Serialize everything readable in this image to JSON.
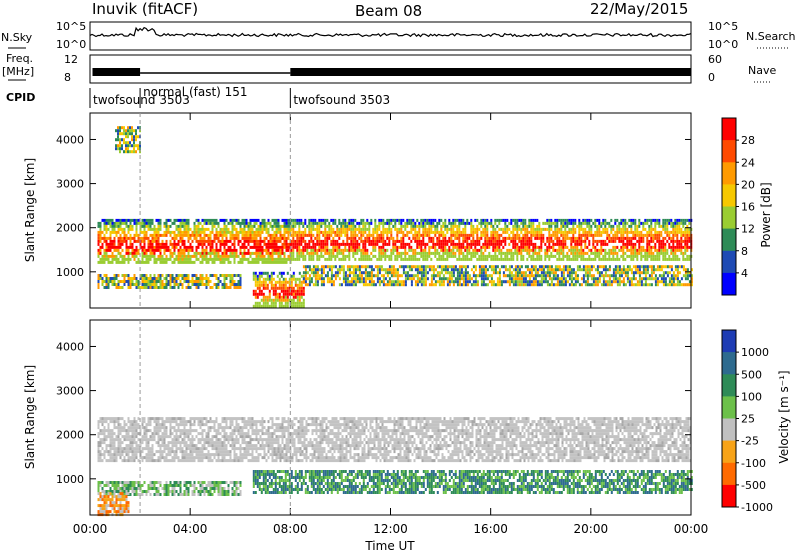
{
  "header": {
    "station": "Inuvik (fitACF)",
    "beam": "Beam 08",
    "date": "22/May/2015"
  },
  "chart_data": [
    {
      "type": "line",
      "name": "n-sky-n-search",
      "left_label": "N.Sky",
      "right_label": "N.Search",
      "left_ticks": [
        "10^5",
        "10^0"
      ],
      "right_ticks": [
        "10^5",
        "10^0"
      ],
      "log_scale": true
    },
    {
      "type": "line",
      "name": "freq-nave",
      "left_label_top": "Freq.",
      "left_label_unit": "[MHz]",
      "right_label": "Nave",
      "left_ticks": [
        "12",
        "8"
      ],
      "right_ticks": [
        "60",
        "0"
      ]
    },
    {
      "type": "table",
      "name": "cpid",
      "label": "CPID",
      "segments": [
        {
          "start_ut": 0.0,
          "end_ut": 2.0,
          "text": "twofsound 3503"
        },
        {
          "start_ut": 2.0,
          "end_ut": 8.0,
          "text": "normal (fast) 151"
        },
        {
          "start_ut": 8.0,
          "end_ut": 24.0,
          "text": "twofsound 3503"
        }
      ]
    },
    {
      "type": "heatmap",
      "name": "power",
      "ylabel": "Slant Range [km]",
      "ylim": [
        180,
        4600
      ],
      "yticks": [
        "1000",
        "2000",
        "3000",
        "4000"
      ],
      "colorbar_label": "Power [dB]",
      "colorbar_ticks": [
        "28",
        "24",
        "20",
        "16",
        "12",
        "8",
        "4"
      ],
      "colorbar_colors": [
        "#ff0000",
        "#ff4a00",
        "#ff9a00",
        "#f6c800",
        "#9acd32",
        "#2e8b57",
        "#1e4ab4",
        "#0000ff"
      ],
      "bands": [
        {
          "start_ut": 0.3,
          "end_ut": 8.0,
          "low_km": 1200,
          "high_km": 2200,
          "level": "high"
        },
        {
          "start_ut": 8.0,
          "end_ut": 24.0,
          "low_km": 1300,
          "high_km": 2200,
          "level": "high"
        },
        {
          "start_ut": 0.3,
          "end_ut": 6.0,
          "low_km": 650,
          "high_km": 950,
          "level": "mid"
        },
        {
          "start_ut": 6.5,
          "end_ut": 8.5,
          "low_km": 250,
          "high_km": 1000,
          "level": "high"
        },
        {
          "start_ut": 8.5,
          "end_ut": 24.0,
          "low_km": 700,
          "high_km": 1150,
          "level": "mid"
        },
        {
          "start_ut": 1.0,
          "end_ut": 2.0,
          "low_km": 3700,
          "high_km": 4300,
          "level": "mid"
        }
      ]
    },
    {
      "type": "heatmap",
      "name": "velocity",
      "ylabel": "Slant Range [km]",
      "xlabel": "Time UT",
      "ylim": [
        180,
        4600
      ],
      "yticks": [
        "1000",
        "2000",
        "3000",
        "4000"
      ],
      "xticks": [
        "00:00",
        "04:00",
        "08:00",
        "12:00",
        "16:00",
        "20:00",
        "00:00"
      ],
      "colorbar_label": "Velocity [m s⁻¹]",
      "colorbar_ticks": [
        "1000",
        "500",
        "100",
        "25",
        "-25",
        "-100",
        "-500",
        "-1000"
      ],
      "colorbar_colors": [
        "#1e3cb4",
        "#2e6b8f",
        "#2e8b57",
        "#6cc04a",
        "#c0c0c0",
        "#f7a318",
        "#ff6a00",
        "#ff0000"
      ],
      "bands": [
        {
          "start_ut": 0.3,
          "end_ut": 24.0,
          "low_km": 1400,
          "high_km": 2400,
          "level": "ground"
        },
        {
          "start_ut": 6.5,
          "end_ut": 24.0,
          "low_km": 700,
          "high_km": 1200,
          "level": "positive"
        },
        {
          "start_ut": 0.3,
          "end_ut": 6.0,
          "low_km": 650,
          "high_km": 950,
          "level": "positive-weak"
        },
        {
          "start_ut": 0.3,
          "end_ut": 1.5,
          "low_km": 200,
          "high_km": 700,
          "level": "negative"
        }
      ]
    }
  ]
}
